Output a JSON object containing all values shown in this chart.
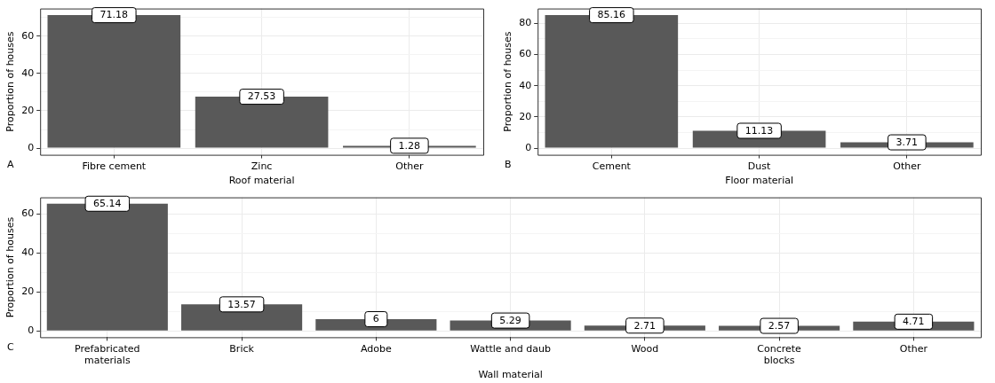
{
  "chart_data": [
    {
      "type": "bar",
      "categories": [
        "Fibre cement",
        "Zinc",
        "Other"
      ],
      "values": [
        71.18,
        27.53,
        1.28
      ],
      "color": "#595959",
      "xlabel": "Roof material",
      "ylabel": "Proportion of houses",
      "ylim": [
        -3.56,
        74.74
      ],
      "yticks": [
        0,
        {
          "value": 10,
          "label": null
        },
        20,
        {
          "value": 30,
          "label": null
        },
        40,
        {
          "value": 50,
          "label": null
        },
        60,
        {
          "value": 70,
          "label": null
        }
      ],
      "grid": true,
      "legend": false,
      "data_labels": true,
      "annotations": [
        "A"
      ]
    },
    {
      "type": "bar",
      "categories": [
        "Cement",
        "Dust",
        "Other"
      ],
      "values": [
        85.16,
        11.13,
        3.71
      ],
      "color": "#595959",
      "xlabel": "Floor material",
      "ylabel": "Proportion of houses",
      "ylim": [
        -4.26,
        89.42
      ],
      "yticks": [
        0,
        {
          "value": 10,
          "label": null
        },
        20,
        {
          "value": 30,
          "label": null
        },
        40,
        {
          "value": 50,
          "label": null
        },
        60,
        {
          "value": 70,
          "label": null
        },
        80
      ],
      "grid": true,
      "legend": false,
      "data_labels": true,
      "annotations": [
        "B"
      ]
    },
    {
      "type": "bar",
      "categories": [
        "Prefabricated\nmaterials",
        "Brick",
        "Adobe",
        "Wattle and daub",
        "Wood",
        "Concrete\nblocks",
        "Other"
      ],
      "values": [
        65.14,
        13.57,
        6,
        5.29,
        2.71,
        2.57,
        4.71
      ],
      "color": "#595959",
      "xlabel": "Wall material",
      "ylabel": "Proportion of houses",
      "ylim": [
        -3.26,
        68.4
      ],
      "yticks": [
        0,
        {
          "value": 10,
          "label": null
        },
        20,
        {
          "value": 30,
          "label": null
        },
        40,
        {
          "value": 50,
          "label": null
        },
        60
      ],
      "grid": true,
      "legend": false,
      "data_labels": true,
      "annotations": [
        "C"
      ]
    }
  ]
}
